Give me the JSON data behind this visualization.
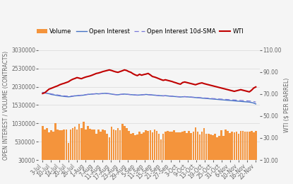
{
  "x_labels": [
    "3-Jul",
    "10-Jul",
    "14-Jul",
    "20-Jul",
    "26-Jul",
    "1-Aug",
    "7-Aug",
    "11-Aug",
    "17-Aug",
    "23-Aug",
    "29-Aug",
    "5-Sep",
    "11-Sep",
    "15-Sep",
    "21-Sep",
    "27-Sep",
    "3-Oct",
    "9-Oct",
    "13-Oct",
    "19-Oct",
    "25-Oct",
    "31-Oct",
    "6-Nov",
    "10-Nov",
    "16-Nov",
    "22-Nov"
  ],
  "wti": [
    70.5,
    71.2,
    72.8,
    74.5,
    75.2,
    76.0,
    76.8,
    77.5,
    78.5,
    79.2,
    79.8,
    80.5,
    81.2,
    82.5,
    83.5,
    84.2,
    85.0,
    84.5,
    84.0,
    84.8,
    85.5,
    86.0,
    86.5,
    87.2,
    88.0,
    88.8,
    89.2,
    89.8,
    90.5,
    91.0,
    91.5,
    92.0,
    91.5,
    90.8,
    90.2,
    89.8,
    90.5,
    91.2,
    92.0,
    91.5,
    90.5,
    89.8,
    88.5,
    87.5,
    86.8,
    88.0,
    87.2,
    87.8,
    88.2,
    88.8,
    87.5,
    86.0,
    85.5,
    84.8,
    84.0,
    83.2,
    82.5,
    83.0,
    82.5,
    82.0,
    81.5,
    80.8,
    80.2,
    79.5,
    79.0,
    80.5,
    81.0,
    80.5,
    80.0,
    79.5,
    79.0,
    78.5,
    79.2,
    79.8,
    80.2,
    79.5,
    79.0,
    78.5,
    78.0,
    77.5,
    77.0,
    76.5,
    76.0,
    75.5,
    75.0,
    74.5,
    74.0,
    73.5,
    73.0,
    72.5,
    73.0,
    73.5,
    74.0,
    73.5,
    73.0,
    72.5,
    72.0,
    73.5,
    75.5,
    76.5
  ],
  "open_interest": [
    1870000,
    1860000,
    1850000,
    1840000,
    1820000,
    1810000,
    1800000,
    1790000,
    1780000,
    1775000,
    1765000,
    1760000,
    1755000,
    1760000,
    1770000,
    1780000,
    1785000,
    1790000,
    1795000,
    1800000,
    1810000,
    1820000,
    1825000,
    1830000,
    1835000,
    1840000,
    1835000,
    1840000,
    1845000,
    1850000,
    1845000,
    1840000,
    1830000,
    1820000,
    1815000,
    1810000,
    1820000,
    1825000,
    1830000,
    1825000,
    1820000,
    1815000,
    1810000,
    1805000,
    1800000,
    1805000,
    1810000,
    1815000,
    1820000,
    1815000,
    1810000,
    1805000,
    1800000,
    1795000,
    1790000,
    1785000,
    1780000,
    1785000,
    1780000,
    1775000,
    1770000,
    1765000,
    1760000,
    1755000,
    1750000,
    1755000,
    1760000,
    1755000,
    1750000,
    1745000,
    1740000,
    1735000,
    1730000,
    1725000,
    1720000,
    1715000,
    1710000,
    1705000,
    1700000,
    1695000,
    1690000,
    1685000,
    1680000,
    1675000,
    1670000,
    1665000,
    1660000,
    1655000,
    1650000,
    1645000,
    1640000,
    1635000,
    1630000,
    1625000,
    1620000,
    1615000,
    1610000,
    1600000,
    1585000,
    1560000
  ],
  "open_interest_sma": [
    1880000,
    1870000,
    1860000,
    1850000,
    1835000,
    1825000,
    1815000,
    1805000,
    1795000,
    1788000,
    1780000,
    1775000,
    1770000,
    1772000,
    1778000,
    1785000,
    1790000,
    1795000,
    1800000,
    1808000,
    1815000,
    1822000,
    1828000,
    1832000,
    1836000,
    1840000,
    1837000,
    1840000,
    1844000,
    1848000,
    1843000,
    1838000,
    1830000,
    1822000,
    1816000,
    1812000,
    1820000,
    1824000,
    1828000,
    1824000,
    1820000,
    1815000,
    1810000,
    1806000,
    1802000,
    1806000,
    1810000,
    1814000,
    1818000,
    1814000,
    1810000,
    1806000,
    1802000,
    1797000,
    1792000,
    1787000,
    1782000,
    1784000,
    1780000,
    1776000,
    1772000,
    1768000,
    1764000,
    1760000,
    1756000,
    1758000,
    1760000,
    1756000,
    1752000,
    1748000,
    1744000,
    1740000,
    1736000,
    1732000,
    1728000,
    1724000,
    1720000,
    1716000,
    1712000,
    1708000,
    1704000,
    1700000,
    1696000,
    1692000,
    1688000,
    1684000,
    1680000,
    1676000,
    1672000,
    1668000,
    1664000,
    1660000,
    1656000,
    1652000,
    1648000,
    1644000,
    1640000,
    1635000,
    1625000,
    1610000
  ],
  "volume": [
    950000,
    860000,
    900000,
    780000,
    840000,
    810000,
    1030000,
    870000,
    850000,
    840000,
    860000,
    870000,
    490000,
    870000,
    900000,
    940000,
    870000,
    1020000,
    900000,
    1070000,
    870000,
    950000,
    890000,
    870000,
    860000,
    750000,
    860000,
    800000,
    860000,
    850000,
    750000,
    650000,
    940000,
    860000,
    850000,
    900000,
    840000,
    1010000,
    960000,
    910000,
    820000,
    750000,
    760000,
    700000,
    730000,
    810000,
    740000,
    780000,
    850000,
    820000,
    850000,
    780000,
    870000,
    820000,
    750000,
    600000,
    750000,
    800000,
    820000,
    800000,
    810000,
    850000,
    790000,
    790000,
    790000,
    810000,
    830000,
    760000,
    830000,
    760000,
    800000,
    920000,
    800000,
    730000,
    800000,
    900000,
    750000,
    740000,
    730000,
    700000,
    750000,
    640000,
    690000,
    850000,
    680000,
    870000,
    820000,
    770000,
    810000,
    780000,
    800000,
    740000,
    820000,
    820000,
    800000,
    800000,
    800000,
    820000,
    780000,
    820000
  ],
  "n_bars": 100,
  "left_ylim": [
    30000,
    3030000
  ],
  "left_yticks": [
    30000,
    530000,
    1030000,
    1530000,
    2030000,
    2530000,
    3030000
  ],
  "right_ylim": [
    10.0,
    110.0
  ],
  "right_yticks": [
    10.0,
    30.0,
    50.0,
    70.0,
    90.0,
    110.0
  ],
  "left_ylabel": "OPEN INTEREST / VOLUME (CONTRACTS)",
  "right_ylabel": "WTI ($ PER BARREL)",
  "bg_color": "#f5f5f5",
  "plot_bg_color": "#f5f5f5",
  "grid_color": "#d9d9d9",
  "bar_color": "#f4943c",
  "oi_line_color": "#4472c4",
  "oi_sma_color": "#7878d8",
  "wti_color": "#c00000",
  "legend_labels": [
    "Volume",
    "Open Interest",
    "Open Interest 10d-SMA",
    "WTI"
  ],
  "tick_fontsize": 5.5,
  "label_fontsize": 5.5,
  "legend_fontsize": 6.0
}
